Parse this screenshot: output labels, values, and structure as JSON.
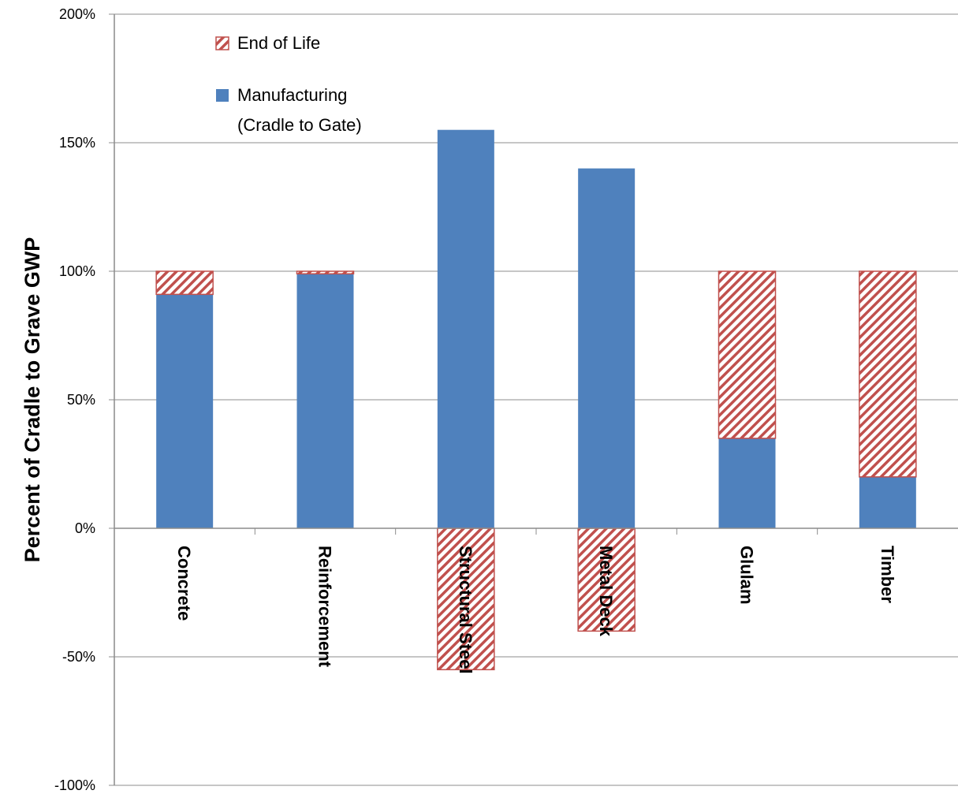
{
  "chart_data": {
    "type": "bar",
    "stacked": true,
    "categories": [
      "Concrete",
      "Reinforcement",
      "Structural Steel",
      "Metal Deck",
      "Glulam",
      "Timber"
    ],
    "series": [
      {
        "name": "Manufacturing\n(Cradle to Gate)",
        "color": "#4f81bd",
        "pattern": "solid",
        "values": [
          91,
          99,
          155,
          140,
          35,
          20
        ]
      },
      {
        "name": "End of Life",
        "color": "#c0504d",
        "pattern": "diagonal-hatch",
        "values": [
          9,
          1,
          -55,
          -40,
          65,
          80
        ]
      }
    ],
    "title": "",
    "xlabel": "",
    "ylabel": "Percent of Cradle to Grave GWP",
    "ylim": [
      -100,
      200
    ],
    "yticks": [
      200,
      150,
      100,
      50,
      0,
      -50,
      -100
    ],
    "ytick_labels": [
      "200%",
      "150%",
      "100%",
      "50%",
      "0%",
      "-50%",
      "-100%"
    ],
    "grid": "horizontal",
    "legend_position": "top-left",
    "legend_entries": [
      {
        "label": "End of Life",
        "series": 1
      },
      {
        "label": "Manufacturing",
        "label_line2": "(Cradle to Gate)",
        "series": 0
      }
    ]
  }
}
